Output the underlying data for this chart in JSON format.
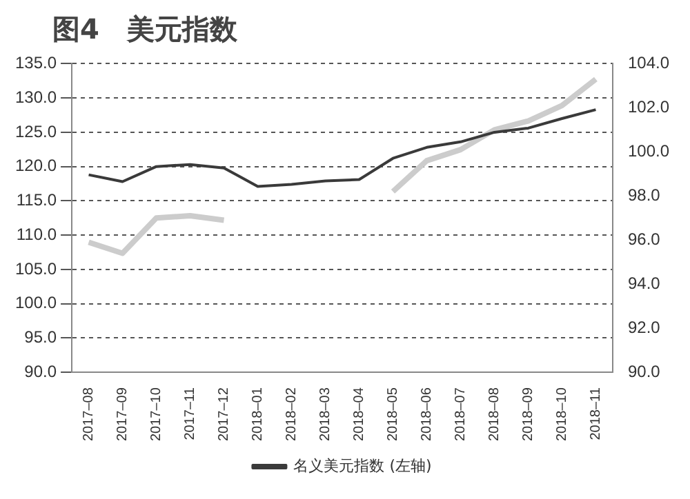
{
  "chart_data": {
    "type": "line",
    "title": "图4　美元指数",
    "categories": [
      "2017–08",
      "2017–09",
      "2017–10",
      "2017–11",
      "2017–12",
      "2018–01",
      "2018–02",
      "2018–03",
      "2018–04",
      "2018–05",
      "2018–06",
      "2018–07",
      "2018–08",
      "2018–09",
      "2018–10",
      "2018–11"
    ],
    "series": [
      {
        "name": "名义美元指数 (左轴)",
        "color": "#3a3a3a",
        "values": [
          118.8,
          117.8,
          120.0,
          120.3,
          119.8,
          117.1,
          117.4,
          117.9,
          118.1,
          121.2,
          122.8,
          123.6,
          125.0,
          125.6,
          127.0,
          128.3
        ]
      },
      {
        "color": "#cccccc",
        "axis": "y2",
        "values": [
          95.9,
          95.4,
          97.0,
          97.1,
          96.9,
          null,
          null,
          null,
          null,
          98.2,
          99.6,
          100.1,
          101.0,
          101.4,
          102.1,
          103.3
        ]
      }
    ],
    "ylim": [
      90,
      135
    ],
    "yticks": [
      {
        "value": 90,
        "label": "90.0"
      },
      {
        "value": 95,
        "label": "95.0"
      },
      {
        "value": 100,
        "label": "100.0"
      },
      {
        "value": 105,
        "label": "105.0"
      },
      {
        "value": 110,
        "label": "110.0"
      },
      {
        "value": 115,
        "label": "115.0"
      },
      {
        "value": 120,
        "label": "120.0"
      },
      {
        "value": 125,
        "label": "125.0"
      },
      {
        "value": 130,
        "label": "130.0"
      },
      {
        "value": 135,
        "label": "135.0"
      }
    ],
    "y2lim": [
      90,
      104
    ],
    "y2ticks": [
      {
        "value": 90,
        "label": "90.0"
      },
      {
        "value": 92,
        "label": "92.0"
      },
      {
        "value": 94,
        "label": "94.0"
      },
      {
        "value": 96,
        "label": "96.0"
      },
      {
        "value": 98,
        "label": "98.0"
      },
      {
        "value": 100,
        "label": "100.0"
      },
      {
        "value": 102,
        "label": "102.0"
      },
      {
        "value": 104,
        "label": "104.0"
      }
    ],
    "grid": "y",
    "legend": "bottom",
    "marker": "none",
    "line_style": "solid"
  }
}
